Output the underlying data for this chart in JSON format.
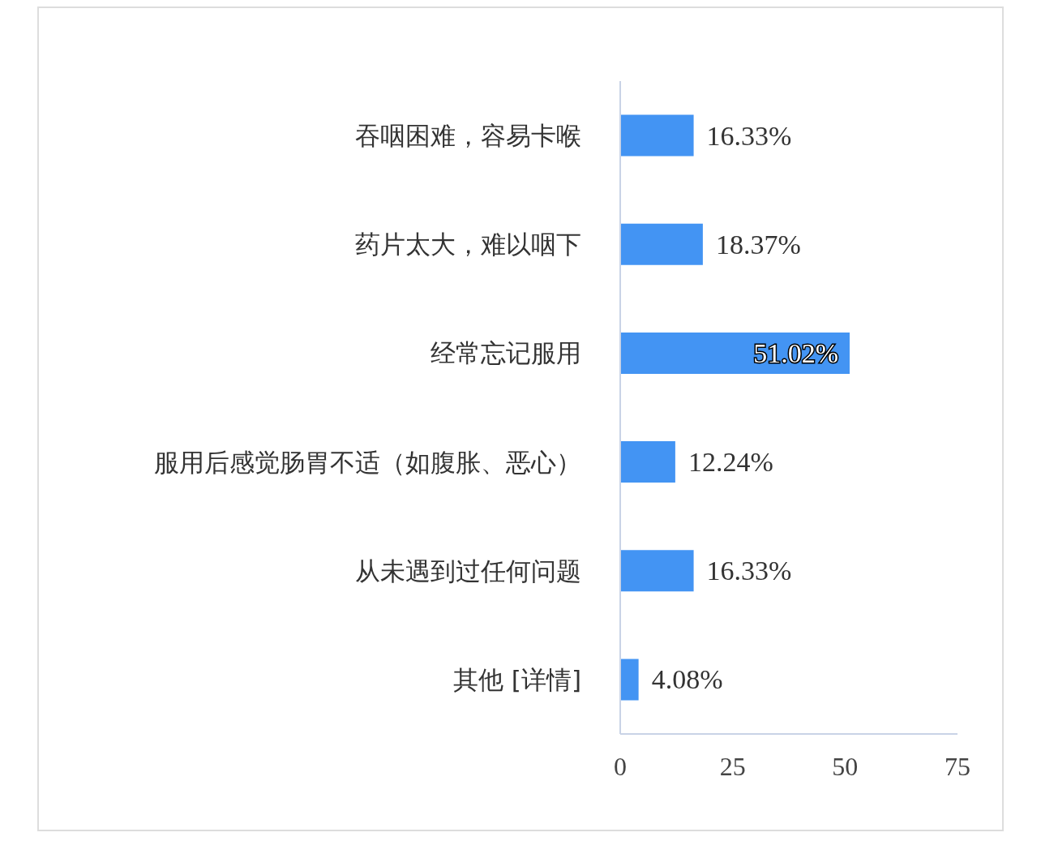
{
  "chart_data": {
    "type": "bar",
    "orientation": "horizontal",
    "categories": [
      "吞咽困难，容易卡喉",
      "药片太大，难以咽下",
      "经常忘记服用",
      "服用后感觉肠胃不适（如腹胀、恶心）",
      "从未遇到过任何问题",
      "其他 [详情]"
    ],
    "values": [
      16.33,
      18.37,
      51.02,
      12.24,
      16.33,
      4.08
    ],
    "value_labels": [
      "16.33%",
      "18.37%",
      "51.02%",
      "12.24%",
      "16.33%",
      "4.08%"
    ],
    "color": "#4394f3",
    "xlim": [
      0,
      75
    ],
    "xticks": [
      0,
      25,
      50,
      75
    ],
    "grid": false,
    "legend": false
  }
}
